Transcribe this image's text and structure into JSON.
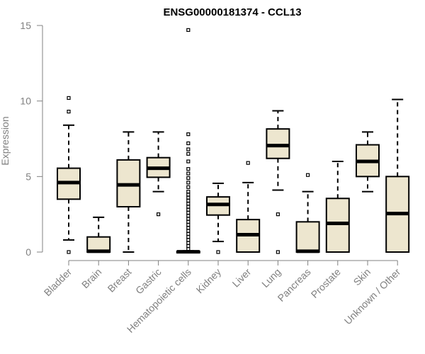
{
  "chart_data": {
    "type": "boxplot",
    "title": "ENSG00000181374 - CCL13",
    "ylabel": "Expression",
    "xlabel": "",
    "ylim": [
      0,
      15
    ],
    "yticks": [
      0,
      5,
      10,
      15
    ],
    "grid": false,
    "box_color": "#ede6cf",
    "categories": [
      "Bladder",
      "Brain",
      "Breast",
      "Gastric",
      "Hematopoietic cells",
      "Kidney",
      "Liver",
      "Lung",
      "Pancreas",
      "Prostate",
      "Skin",
      "Unknown / Other"
    ],
    "series": [
      {
        "category": "Bladder",
        "whisker_low": 0.8,
        "q1": 3.5,
        "median": 4.6,
        "q3": 5.55,
        "whisker_high": 8.4,
        "outliers": [
          0,
          9.3,
          10.2
        ]
      },
      {
        "category": "Brain",
        "whisker_low": 0,
        "q1": 0,
        "median": 0.05,
        "q3": 1.0,
        "whisker_high": 2.3,
        "outliers": []
      },
      {
        "category": "Breast",
        "whisker_low": 0,
        "q1": 3.0,
        "median": 4.45,
        "q3": 6.1,
        "whisker_high": 7.95,
        "outliers": []
      },
      {
        "category": "Gastric",
        "whisker_low": 4.0,
        "q1": 4.95,
        "median": 5.55,
        "q3": 6.25,
        "whisker_high": 7.95,
        "outliers": [
          2.5
        ]
      },
      {
        "category": "Hematopoietic cells",
        "whisker_low": 0,
        "q1": 0,
        "median": 0.02,
        "q3": 0.05,
        "whisker_high": 0.08,
        "outliers": [
          14.7,
          7.8,
          7.2,
          6.8,
          6.5,
          6.0,
          5.5,
          5.2,
          4.9,
          4.6,
          4.3,
          4.0,
          3.8,
          3.6,
          3.4,
          3.2,
          3.0,
          2.8,
          2.6,
          2.4,
          2.2,
          2.0,
          1.8,
          1.6,
          1.4,
          1.2,
          1.0,
          0.8,
          0.6,
          0.4,
          0.2
        ]
      },
      {
        "category": "Kidney",
        "whisker_low": 0.7,
        "q1": 2.45,
        "median": 3.15,
        "q3": 3.65,
        "whisker_high": 4.55,
        "outliers": [
          0
        ]
      },
      {
        "category": "Liver",
        "whisker_low": 0,
        "q1": 0,
        "median": 1.15,
        "q3": 2.15,
        "whisker_high": 4.6,
        "outliers": [
          5.9
        ]
      },
      {
        "category": "Lung",
        "whisker_low": 4.1,
        "q1": 6.2,
        "median": 7.05,
        "q3": 8.15,
        "whisker_high": 9.35,
        "outliers": [
          2.5,
          0
        ]
      },
      {
        "category": "Pancreas",
        "whisker_low": 0,
        "q1": 0,
        "median": 0.05,
        "q3": 2.0,
        "whisker_high": 4.0,
        "outliers": [
          5.1
        ]
      },
      {
        "category": "Prostate",
        "whisker_low": 0,
        "q1": 0,
        "median": 1.9,
        "q3": 3.55,
        "whisker_high": 6.0,
        "outliers": []
      },
      {
        "category": "Skin",
        "whisker_low": 4.0,
        "q1": 5.0,
        "median": 6.0,
        "q3": 7.1,
        "whisker_high": 7.95,
        "outliers": []
      },
      {
        "category": "Unknown / Other",
        "whisker_low": 0,
        "q1": 0,
        "median": 2.55,
        "q3": 5.0,
        "whisker_high": 10.1,
        "outliers": []
      }
    ]
  }
}
